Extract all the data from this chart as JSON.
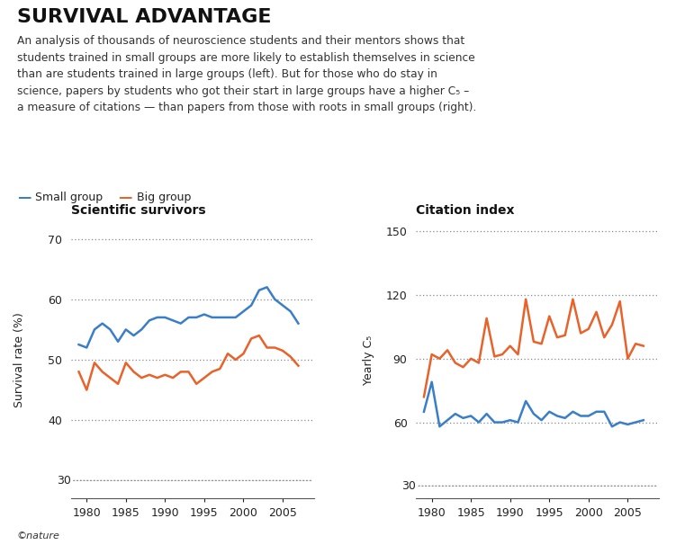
{
  "title": "SURVIVAL ADVANTAGE",
  "subtitle": "An analysis of thousands of neuroscience students and their mentors shows that\nstudents trained in small groups are more likely to establish themselves in science\nthan are students trained in large groups (left). But for those who do stay in\nscience, papers by students who got their start in large groups have a higher C₅ –\na measure of citations — than papers from those with roots in small groups (right).",
  "legend_small": "Small group",
  "legend_big": "Big group",
  "color_small": "#3a7ec8",
  "color_big": "#e8622a",
  "left_title": "Scientific survivors",
  "right_title": "Citation index",
  "left_ylabel": "Survival rate (%)",
  "right_ylabel": "Yearly C₅",
  "left_yticks": [
    40,
    50,
    60,
    70
  ],
  "left_ylim": [
    27,
    73
  ],
  "right_yticks": [
    60,
    90,
    120,
    150
  ],
  "right_ylim": [
    24,
    155
  ],
  "xlim": [
    1978,
    2009
  ],
  "xticks": [
    1980,
    1985,
    1990,
    1995,
    2000,
    2005
  ],
  "left_small_x": [
    1979,
    1980,
    1981,
    1982,
    1983,
    1984,
    1985,
    1986,
    1987,
    1988,
    1989,
    1990,
    1991,
    1992,
    1993,
    1994,
    1995,
    1996,
    1997,
    1998,
    1999,
    2000,
    2001,
    2002,
    2003,
    2004,
    2005,
    2006,
    2007
  ],
  "left_small_y": [
    52.5,
    52,
    55,
    56,
    55,
    53,
    55,
    54,
    55,
    56.5,
    57,
    57,
    56.5,
    56,
    57,
    57,
    57.5,
    57,
    57,
    57,
    57,
    58,
    59,
    61.5,
    62,
    60,
    59,
    58,
    56
  ],
  "left_big_x": [
    1979,
    1980,
    1981,
    1982,
    1983,
    1984,
    1985,
    1986,
    1987,
    1988,
    1989,
    1990,
    1991,
    1992,
    1993,
    1994,
    1995,
    1996,
    1997,
    1998,
    1999,
    2000,
    2001,
    2002,
    2003,
    2004,
    2005,
    2006,
    2007
  ],
  "left_big_y": [
    48,
    45,
    49.5,
    48,
    47,
    46,
    49.5,
    48,
    47,
    47.5,
    47,
    47.5,
    47,
    48,
    48,
    46,
    47,
    48,
    48.5,
    51,
    50,
    51,
    53.5,
    54,
    52,
    52,
    51.5,
    50.5,
    49
  ],
  "right_small_x": [
    1979,
    1980,
    1981,
    1982,
    1983,
    1984,
    1985,
    1986,
    1987,
    1988,
    1989,
    1990,
    1991,
    1992,
    1993,
    1994,
    1995,
    1996,
    1997,
    1998,
    1999,
    2000,
    2001,
    2002,
    2003,
    2004,
    2005,
    2006,
    2007
  ],
  "right_small_y": [
    65,
    79,
    58,
    61,
    64,
    62,
    63,
    60,
    64,
    60,
    60,
    61,
    60,
    70,
    64,
    61,
    65,
    63,
    62,
    65,
    63,
    63,
    65,
    65,
    58,
    60,
    59,
    60,
    61
  ],
  "right_big_x": [
    1979,
    1980,
    1981,
    1982,
    1983,
    1984,
    1985,
    1986,
    1987,
    1988,
    1989,
    1990,
    1991,
    1992,
    1993,
    1994,
    1995,
    1996,
    1997,
    1998,
    1999,
    2000,
    2001,
    2002,
    2003,
    2004,
    2005,
    2006,
    2007
  ],
  "right_big_y": [
    72,
    92,
    90,
    94,
    88,
    86,
    90,
    88,
    109,
    91,
    92,
    96,
    92,
    118,
    98,
    97,
    110,
    100,
    101,
    118,
    102,
    104,
    112,
    100,
    106,
    117,
    90,
    97,
    96
  ],
  "nature_text": "©nature",
  "bg_color": "#ffffff",
  "dot_color": "#888888",
  "tick_color": "#555555",
  "label_color": "#222222"
}
